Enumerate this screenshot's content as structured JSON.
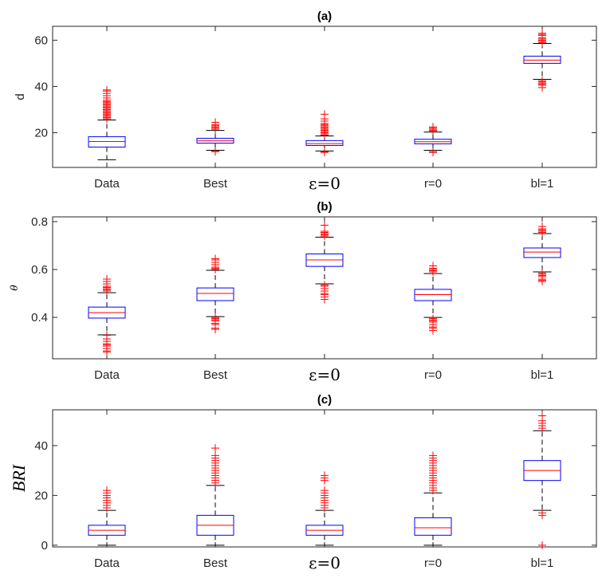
{
  "colors": {
    "box": "#0000ff",
    "median": "#ff0000",
    "outlier": "#ff0000",
    "whisker": "#000000",
    "axis": "#262626"
  },
  "chart_data": [
    {
      "type": "box",
      "title": "(a)",
      "ylabel": "d",
      "ylim": [
        5,
        66
      ],
      "yticks": [
        20,
        40,
        60
      ],
      "ytick_labels": [
        "20",
        "40",
        "60"
      ],
      "categories": [
        "Data",
        "Best",
        "ε=0",
        "r=0",
        "bl=1"
      ],
      "boxes": [
        {
          "lower_whisker": 8.3,
          "q1": 13.8,
          "median": 16.2,
          "q3": 18.3,
          "upper_whisker": 25.5,
          "outliers": [
            26,
            26.5,
            27,
            27.5,
            28,
            28.5,
            29,
            29.5,
            30,
            30.5,
            31,
            31.5,
            32,
            32.5,
            33,
            33.5,
            34,
            35,
            36,
            37,
            38,
            38.5
          ]
        },
        {
          "lower_whisker": 12.4,
          "q1": 15.5,
          "median": 16.5,
          "q3": 17.6,
          "upper_whisker": 21,
          "outliers": [
            21.5,
            22,
            22.5,
            23,
            23.5,
            24.5,
            12,
            11.8
          ]
        },
        {
          "lower_whisker": 12.1,
          "q1": 14.5,
          "median": 15.3,
          "q3": 16.6,
          "upper_whisker": 18.6,
          "outliers": [
            19,
            19.5,
            20,
            20.5,
            21,
            21.5,
            22,
            22.5,
            23,
            23.5,
            24,
            25,
            26,
            28,
            11.8,
            11.5
          ]
        },
        {
          "lower_whisker": 12.4,
          "q1": 15.2,
          "median": 16.1,
          "q3": 17.2,
          "upper_whisker": 20.3,
          "outliers": [
            20.8,
            21,
            21.5,
            22,
            22.5,
            11.8,
            11.5
          ]
        },
        {
          "lower_whisker": 43.1,
          "q1": 50,
          "median": 51.4,
          "q3": 53.1,
          "upper_whisker": 58.6,
          "outliers": [
            59,
            59.5,
            60,
            60.5,
            61,
            62,
            62.5,
            63,
            39.5,
            40.5,
            41,
            41.5,
            42,
            42.5
          ]
        }
      ]
    },
    {
      "type": "box",
      "title": "(b)",
      "ylabel": "θ",
      "ylim": [
        0.227,
        0.82
      ],
      "yticks": [
        0.4,
        0.6,
        0.8
      ],
      "ytick_labels": [
        "0.4",
        "0.6",
        "0.8"
      ],
      "categories": [
        "Data",
        "Best",
        "ε=0",
        "r=0",
        "bl=1"
      ],
      "boxes": [
        {
          "lower_whisker": 0.327,
          "q1": 0.397,
          "median": 0.42,
          "q3": 0.443,
          "upper_whisker": 0.503,
          "outliers": [
            0.51,
            0.515,
            0.52,
            0.525,
            0.53,
            0.54,
            0.55,
            0.56,
            0.325,
            0.31,
            0.3,
            0.29,
            0.285,
            0.28,
            0.27,
            0.26,
            0.255
          ]
        },
        {
          "lower_whisker": 0.403,
          "q1": 0.47,
          "median": 0.5,
          "q3": 0.523,
          "upper_whisker": 0.597,
          "outliers": [
            0.6,
            0.605,
            0.61,
            0.62,
            0.63,
            0.64,
            0.645,
            0.4,
            0.395,
            0.39,
            0.385,
            0.375,
            0.37,
            0.355,
            0.35
          ]
        },
        {
          "lower_whisker": 0.54,
          "q1": 0.613,
          "median": 0.64,
          "q3": 0.665,
          "upper_whisker": 0.735,
          "outliers": [
            0.74,
            0.745,
            0.75,
            0.755,
            0.76,
            0.785,
            0.535,
            0.53,
            0.52,
            0.51,
            0.5,
            0.495,
            0.485,
            0.475
          ]
        },
        {
          "lower_whisker": 0.4,
          "q1": 0.47,
          "median": 0.495,
          "q3": 0.517,
          "upper_whisker": 0.583,
          "outliers": [
            0.59,
            0.595,
            0.6,
            0.605,
            0.615,
            0.395,
            0.39,
            0.385,
            0.38,
            0.37,
            0.36,
            0.355,
            0.345
          ]
        },
        {
          "lower_whisker": 0.59,
          "q1": 0.65,
          "median": 0.673,
          "q3": 0.69,
          "upper_whisker": 0.75,
          "outliers": [
            0.755,
            0.76,
            0.765,
            0.77,
            0.78,
            0.585,
            0.58,
            0.575,
            0.57,
            0.56,
            0.555,
            0.55
          ]
        }
      ]
    },
    {
      "type": "box",
      "title": "(c)",
      "ylabel": "BRI",
      "ylim": [
        -0.7,
        54.4
      ],
      "yticks": [
        0,
        20,
        40
      ],
      "ytick_labels": [
        "0",
        "20",
        "40"
      ],
      "categories": [
        "Data",
        "Best",
        "ε=0",
        "r=0",
        "bl=1"
      ],
      "boxes": [
        {
          "lower_whisker": 0,
          "q1": 4,
          "median": 6,
          "q3": 8,
          "upper_whisker": 14,
          "outliers": [
            15,
            16,
            17,
            18,
            19,
            20,
            21,
            22
          ]
        },
        {
          "lower_whisker": 0,
          "q1": 4,
          "median": 8,
          "q3": 12,
          "upper_whisker": 24,
          "outliers": [
            25,
            26,
            27,
            28,
            29,
            30,
            31,
            32,
            33,
            34,
            35,
            36,
            39
          ]
        },
        {
          "lower_whisker": 0,
          "q1": 4,
          "median": 6,
          "q3": 8,
          "upper_whisker": 14,
          "outliers": [
            15,
            16,
            17,
            18,
            19,
            20,
            21,
            22,
            26,
            27,
            28
          ]
        },
        {
          "lower_whisker": 0,
          "q1": 4,
          "median": 7,
          "q3": 11,
          "upper_whisker": 21,
          "outliers": [
            22,
            23,
            24,
            25,
            26,
            27,
            28,
            29,
            30,
            31,
            32,
            33,
            34,
            35,
            36
          ]
        },
        {
          "lower_whisker": 14,
          "q1": 26,
          "median": 30,
          "q3": 34,
          "upper_whisker": 46,
          "outliers": [
            47,
            48,
            49,
            50,
            52,
            13,
            12,
            0
          ]
        }
      ]
    }
  ]
}
